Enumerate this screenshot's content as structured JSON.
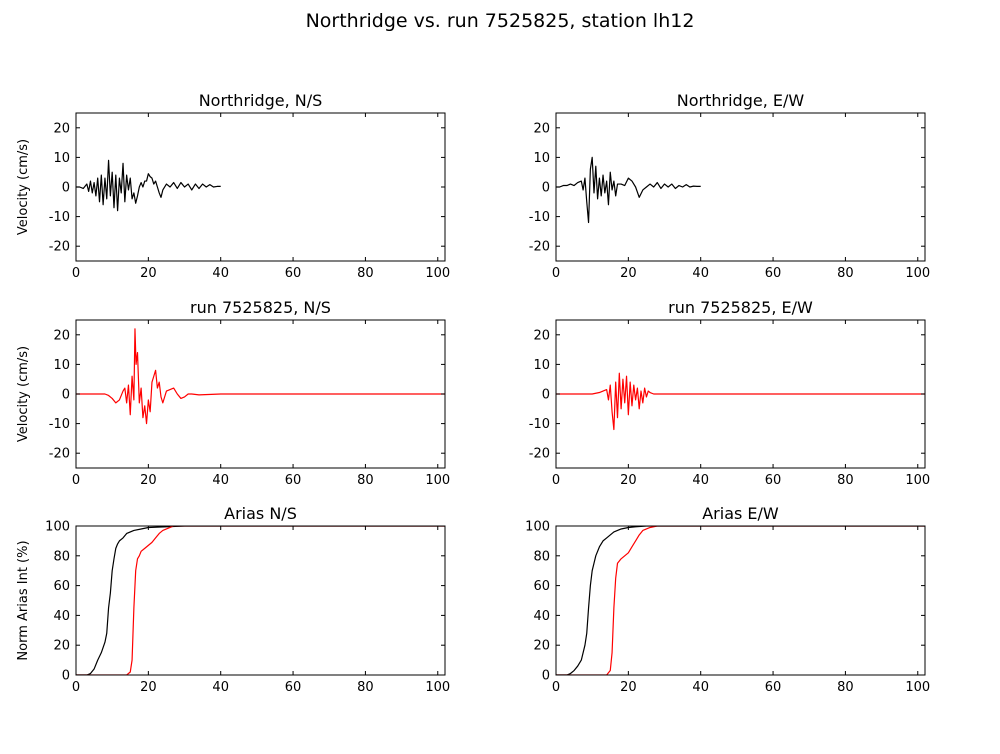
{
  "figure": {
    "title": "Northridge vs. run 7525825, station lh12"
  },
  "chart_data": [
    {
      "type": "line",
      "title": "Northridge, N/S",
      "xlabel": "",
      "ylabel": "Velocity (cm/s)",
      "xlim": [
        0,
        102
      ],
      "ylim": [
        -25,
        25
      ],
      "xticks": [
        0,
        20,
        40,
        60,
        80,
        100
      ],
      "yticks": [
        -20,
        -10,
        0,
        10,
        20
      ],
      "grid": false,
      "series": [
        {
          "color": "#000000",
          "x": [
            0,
            1,
            2,
            3,
            3.5,
            4,
            4.5,
            5,
            5.5,
            6,
            6.5,
            7,
            7.5,
            8,
            8.5,
            9,
            9.5,
            10,
            10.5,
            11,
            11.5,
            12,
            12.5,
            13,
            13.5,
            14,
            14.5,
            15,
            15.5,
            16,
            16.5,
            17,
            17.5,
            18,
            18.5,
            19,
            19.5,
            20,
            20.5,
            21,
            21.5,
            22,
            22.5,
            23,
            23.5,
            24,
            25,
            26,
            27,
            28,
            29,
            30,
            31,
            32,
            33,
            34,
            35,
            36,
            37,
            38,
            39,
            40
          ],
          "y": [
            0,
            0,
            -0.5,
            1,
            -1.5,
            2,
            -2,
            1.5,
            -3,
            3,
            -5,
            4,
            -6,
            3,
            -4,
            9,
            -3,
            5,
            -7,
            4,
            -8,
            3,
            -2,
            8,
            -5,
            4,
            -1,
            3,
            -4,
            -2,
            -5.5,
            -3,
            0,
            1.5,
            0,
            2,
            2,
            4.5,
            3.5,
            3,
            1,
            2,
            0,
            -2,
            -3.5,
            -1,
            1,
            0,
            1.5,
            -0.5,
            1.5,
            0,
            1,
            -1,
            1,
            -0.5,
            1,
            0,
            0.8,
            0,
            0.2,
            0.2
          ]
        }
      ]
    },
    {
      "type": "line",
      "title": "Northridge, E/W",
      "xlabel": "",
      "ylabel": "",
      "xlim": [
        0,
        102
      ],
      "ylim": [
        -25,
        25
      ],
      "xticks": [
        0,
        20,
        40,
        60,
        80,
        100
      ],
      "yticks": [
        -20,
        -10,
        0,
        10,
        20
      ],
      "grid": false,
      "series": [
        {
          "color": "#000000",
          "x": [
            0,
            1,
            2,
            3,
            4,
            5,
            6,
            7,
            7.5,
            8,
            8.5,
            9,
            9.5,
            10,
            10.5,
            11,
            11.5,
            12,
            12.5,
            13,
            13.5,
            14,
            14.5,
            15,
            15.5,
            16,
            16.5,
            17,
            18,
            19,
            20,
            21,
            22,
            23,
            24,
            25,
            26,
            27,
            28,
            29,
            30,
            31,
            32,
            33,
            34,
            35,
            36,
            37,
            38,
            39,
            40
          ],
          "y": [
            0,
            0,
            0.5,
            0.5,
            1,
            0.5,
            1.5,
            2,
            -1,
            3,
            -5,
            -12,
            6,
            10,
            -2,
            7,
            -4,
            3,
            -3,
            4,
            -2,
            2,
            -6,
            5,
            -1,
            2,
            -3,
            1,
            1,
            0.5,
            3,
            2,
            0,
            -3.5,
            -1,
            0,
            1,
            0,
            1.5,
            -0.5,
            1,
            0,
            1,
            -0.5,
            0.5,
            0,
            0.8,
            0,
            0.3,
            0.2,
            0.2
          ]
        }
      ]
    },
    {
      "type": "line",
      "title": "run 7525825, N/S",
      "xlabel": "",
      "ylabel": "Velocity (cm/s)",
      "xlim": [
        0,
        102
      ],
      "ylim": [
        -25,
        25
      ],
      "xticks": [
        0,
        20,
        40,
        60,
        80,
        100
      ],
      "yticks": [
        -20,
        -10,
        0,
        10,
        20
      ],
      "grid": false,
      "series": [
        {
          "color": "#ff0000",
          "x": [
            0,
            8,
            9,
            10,
            11,
            12,
            13,
            13.5,
            14,
            14.5,
            15,
            15.5,
            16,
            16.3,
            16.6,
            17,
            17.5,
            18,
            18.5,
            19,
            19.5,
            20,
            20.5,
            21,
            21.5,
            22,
            22.5,
            23,
            23.5,
            24,
            25,
            26,
            27,
            28,
            29,
            30,
            31,
            32,
            34,
            40,
            102
          ],
          "y": [
            0,
            0,
            -0.5,
            -1.5,
            -3,
            -2,
            1,
            2,
            -3,
            3,
            -7,
            6,
            -2,
            22,
            10,
            14,
            -3,
            2,
            -8,
            -4,
            -10,
            -2,
            -6,
            4,
            6,
            8,
            2,
            4,
            -1,
            -3,
            1,
            1.5,
            2,
            0,
            -1.5,
            -1,
            0,
            0,
            -0.3,
            0,
            0
          ]
        }
      ]
    },
    {
      "type": "line",
      "title": "run 7525825, E/W",
      "xlabel": "",
      "ylabel": "",
      "xlim": [
        0,
        102
      ],
      "ylim": [
        -25,
        25
      ],
      "xticks": [
        0,
        20,
        40,
        60,
        80,
        100
      ],
      "yticks": [
        -20,
        -10,
        0,
        10,
        20
      ],
      "grid": false,
      "series": [
        {
          "color": "#ff0000",
          "x": [
            0,
            10,
            12,
            13,
            14,
            14.5,
            15,
            15.5,
            16,
            16.5,
            17,
            17.5,
            18,
            18.5,
            19,
            19.5,
            20,
            20.5,
            21,
            21.5,
            22,
            22.5,
            23,
            23.5,
            24,
            24.5,
            25,
            25.5,
            26,
            27,
            28,
            102
          ],
          "y": [
            0,
            0,
            0.5,
            1,
            1.5,
            -2,
            3,
            -6,
            -12,
            4,
            -8,
            7,
            -5,
            5,
            -3,
            6,
            -7,
            4,
            -4,
            3,
            -2,
            2,
            -5,
            1,
            -3,
            2,
            -1,
            1,
            0.5,
            0,
            0,
            0
          ]
        }
      ]
    },
    {
      "type": "line",
      "title": "Arias N/S",
      "xlabel": "",
      "ylabel": "Norm Arias Int (%)",
      "xlim": [
        0,
        102
      ],
      "ylim": [
        0,
        100
      ],
      "xticks": [
        0,
        20,
        40,
        60,
        80,
        100
      ],
      "yticks": [
        0,
        20,
        40,
        60,
        80,
        100
      ],
      "grid": false,
      "series": [
        {
          "color": "#000000",
          "x": [
            0,
            3,
            4,
            5,
            6,
            7,
            8,
            8.5,
            9,
            9.5,
            10,
            10.5,
            11,
            11.5,
            12,
            13,
            14,
            16,
            18,
            20,
            25,
            30,
            40,
            102
          ],
          "y": [
            0,
            0,
            1,
            4,
            10,
            15,
            22,
            28,
            45,
            55,
            70,
            78,
            85,
            88,
            90,
            92,
            95,
            97,
            98,
            99,
            99.5,
            100,
            100,
            100
          ]
        },
        {
          "color": "#ff0000",
          "x": [
            0,
            14,
            15,
            15.5,
            16,
            16.5,
            17,
            17.5,
            18,
            19,
            20,
            21,
            22,
            23,
            24,
            25,
            26,
            27,
            30,
            40,
            102
          ],
          "y": [
            0,
            0,
            2,
            10,
            45,
            70,
            78,
            80,
            83,
            85,
            87,
            89,
            92,
            95,
            97,
            98,
            99,
            100,
            100,
            100,
            100
          ]
        }
      ]
    },
    {
      "type": "line",
      "title": "Arias E/W",
      "xlabel": "",
      "ylabel": "",
      "xlim": [
        0,
        102
      ],
      "ylim": [
        0,
        100
      ],
      "xticks": [
        0,
        20,
        40,
        60,
        80,
        100
      ],
      "yticks": [
        0,
        20,
        40,
        60,
        80,
        100
      ],
      "grid": false,
      "series": [
        {
          "color": "#000000",
          "x": [
            0,
            3,
            4,
            5,
            6,
            7,
            8,
            8.5,
            9,
            9.5,
            10,
            10.5,
            11,
            12,
            13,
            14,
            15,
            16,
            18,
            20,
            22,
            25,
            30,
            40,
            102
          ],
          "y": [
            0,
            0,
            1,
            3,
            6,
            10,
            20,
            28,
            45,
            60,
            70,
            75,
            80,
            86,
            90,
            92,
            94,
            96,
            98,
            99,
            99.5,
            100,
            100,
            100,
            100
          ]
        },
        {
          "color": "#ff0000",
          "x": [
            0,
            14,
            15,
            15.5,
            16,
            16.5,
            17,
            18,
            19,
            20,
            21,
            22,
            23,
            24,
            25,
            26,
            28,
            30,
            40,
            102
          ],
          "y": [
            0,
            0,
            3,
            15,
            45,
            65,
            75,
            78,
            80,
            82,
            86,
            90,
            94,
            97,
            98,
            99,
            100,
            100,
            100,
            100
          ]
        }
      ]
    }
  ]
}
